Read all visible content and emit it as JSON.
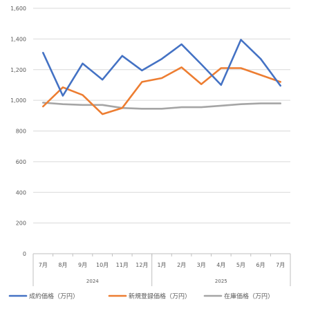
{
  "chart_data": {
    "type": "line",
    "title": "",
    "xlabel": "",
    "ylabel": "",
    "ylim": [
      0,
      1600
    ],
    "yticks": [
      0,
      200,
      400,
      600,
      800,
      1000,
      1200,
      1400,
      1600
    ],
    "ytick_labels": [
      "0",
      "200",
      "400",
      "600",
      "800",
      "1,000",
      "1,200",
      "1,400",
      "1,600"
    ],
    "grid": "horizontal",
    "legend_position": "bottom",
    "categories": [
      "7月",
      "8月",
      "9月",
      "10月",
      "11月",
      "12月",
      "1月",
      "2月",
      "3月",
      "4月",
      "5月",
      "6月",
      "7月"
    ],
    "year_groups": [
      {
        "label": "2024",
        "start": 0,
        "end": 5
      },
      {
        "label": "2025",
        "start": 6,
        "end": 12
      }
    ],
    "series": [
      {
        "name": "成約価格（万円）",
        "color": "#4472C4",
        "values": [
          1310,
          1030,
          1240,
          1135,
          1290,
          1195,
          1270,
          1365,
          1235,
          1100,
          1395,
          1270,
          1095
        ]
      },
      {
        "name": "新規登録価格（万円）",
        "color": "#ED7D31",
        "values": [
          960,
          1085,
          1035,
          910,
          950,
          1120,
          1145,
          1215,
          1105,
          1210,
          1210,
          1165,
          1120
        ]
      },
      {
        "name": "在庫価格（万円）",
        "color": "#A5A5A5",
        "values": [
          985,
          975,
          970,
          970,
          950,
          945,
          945,
          955,
          955,
          965,
          975,
          980,
          980
        ]
      }
    ]
  }
}
